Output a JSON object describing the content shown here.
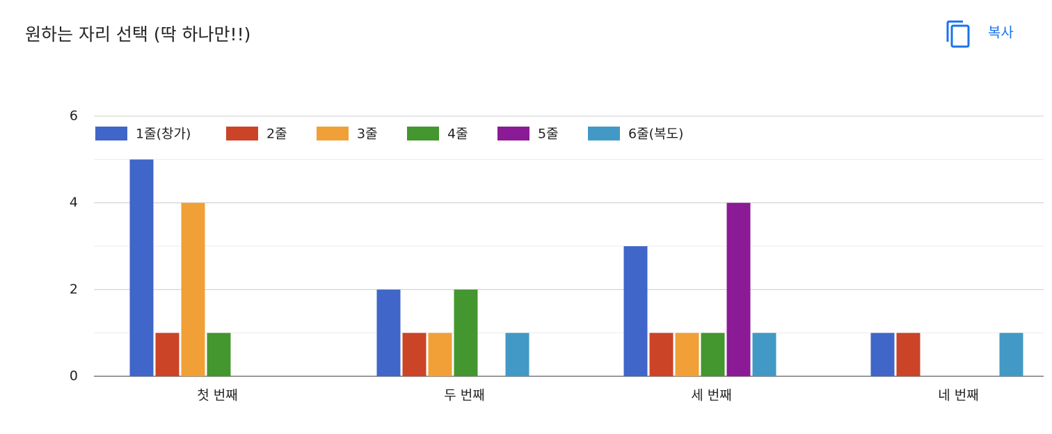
{
  "chart_data": {
    "type": "bar",
    "title": "원하는 자리 선택 (딱 하나만!!)",
    "categories": [
      "첫 번째",
      "두 번째",
      "세 번째",
      "네 번째"
    ],
    "series": [
      {
        "name": "1줄(창가)",
        "color": "#3f66c8",
        "values": [
          5,
          2,
          3,
          1
        ]
      },
      {
        "name": "2줄",
        "color": "#cc4428",
        "values": [
          1,
          1,
          1,
          1
        ]
      },
      {
        "name": "3줄",
        "color": "#f0a037",
        "values": [
          4,
          1,
          1,
          0
        ]
      },
      {
        "name": "4줄",
        "color": "#44962e",
        "values": [
          1,
          2,
          1,
          0
        ]
      },
      {
        "name": "5줄",
        "color": "#8b1a96",
        "values": [
          0,
          0,
          4,
          0
        ]
      },
      {
        "name": "6줄(복도)",
        "color": "#4299c5",
        "values": [
          0,
          1,
          1,
          1
        ]
      }
    ],
    "ylim": [
      0,
      6
    ],
    "yticks": [
      0,
      2,
      4,
      6
    ],
    "grid": true,
    "legend": "top"
  },
  "copy_button": "복사"
}
